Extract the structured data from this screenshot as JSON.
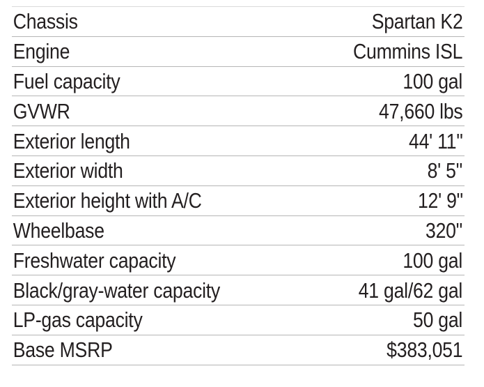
{
  "specs": [
    {
      "label": "Chassis",
      "value": "Spartan K2"
    },
    {
      "label": "Engine",
      "value": "Cummins ISL"
    },
    {
      "label": "Fuel capacity",
      "value": "100 gal"
    },
    {
      "label": "GVWR",
      "value": "47,660 lbs"
    },
    {
      "label": "Exterior length",
      "value": "44' 11\""
    },
    {
      "label": "Exterior width",
      "value": "8' 5\""
    },
    {
      "label": "Exterior height with A/C",
      "value": "12' 9\""
    },
    {
      "label": "Wheelbase",
      "value": "320\""
    },
    {
      "label": "Freshwater capacity",
      "value": "100 gal"
    },
    {
      "label": "Black/gray-water capacity",
      "value": "41 gal/62 gal"
    },
    {
      "label": "LP-gas capacity",
      "value": "50 gal"
    },
    {
      "label": "Base MSRP",
      "value": "$383,051"
    }
  ]
}
